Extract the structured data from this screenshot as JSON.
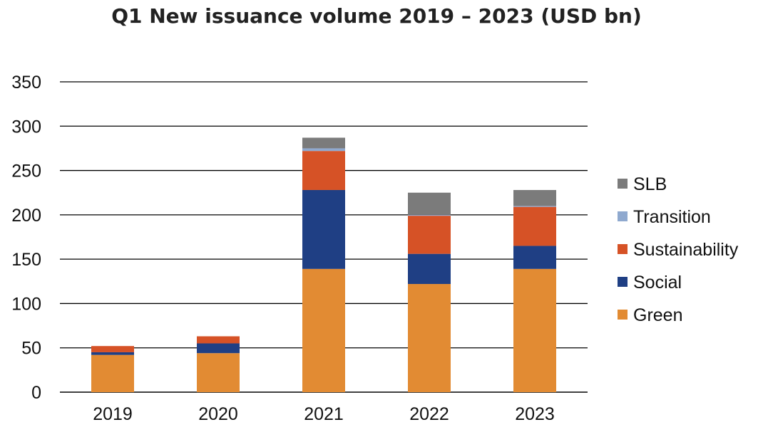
{
  "chart_data": {
    "type": "bar",
    "stacked": true,
    "title": "Q1 New issuance volume 2019 – 2023 (USD bn)",
    "xlabel": "",
    "ylabel": "",
    "categories": [
      "2019",
      "2020",
      "2021",
      "2022",
      "2023"
    ],
    "ylim": [
      0,
      350
    ],
    "yticks": [
      "0",
      "50",
      "100",
      "150",
      "200",
      "250",
      "300",
      "350"
    ],
    "grid": true,
    "legend": "right",
    "series": [
      {
        "name": "Green",
        "color": "#E28B33",
        "values": [
          42,
          44,
          139,
          122,
          139
        ]
      },
      {
        "name": "Social",
        "color": "#1F3F84",
        "values": [
          3,
          11,
          89,
          34,
          26
        ]
      },
      {
        "name": "Sustainability",
        "color": "#D65226",
        "values": [
          7,
          8,
          44,
          43,
          44
        ]
      },
      {
        "name": "Transition",
        "color": "#8FA9CF",
        "values": [
          0,
          0,
          3,
          1,
          1
        ]
      },
      {
        "name": "SLB",
        "color": "#7B7B7B",
        "values": [
          0,
          0,
          12,
          25,
          18
        ]
      }
    ]
  }
}
